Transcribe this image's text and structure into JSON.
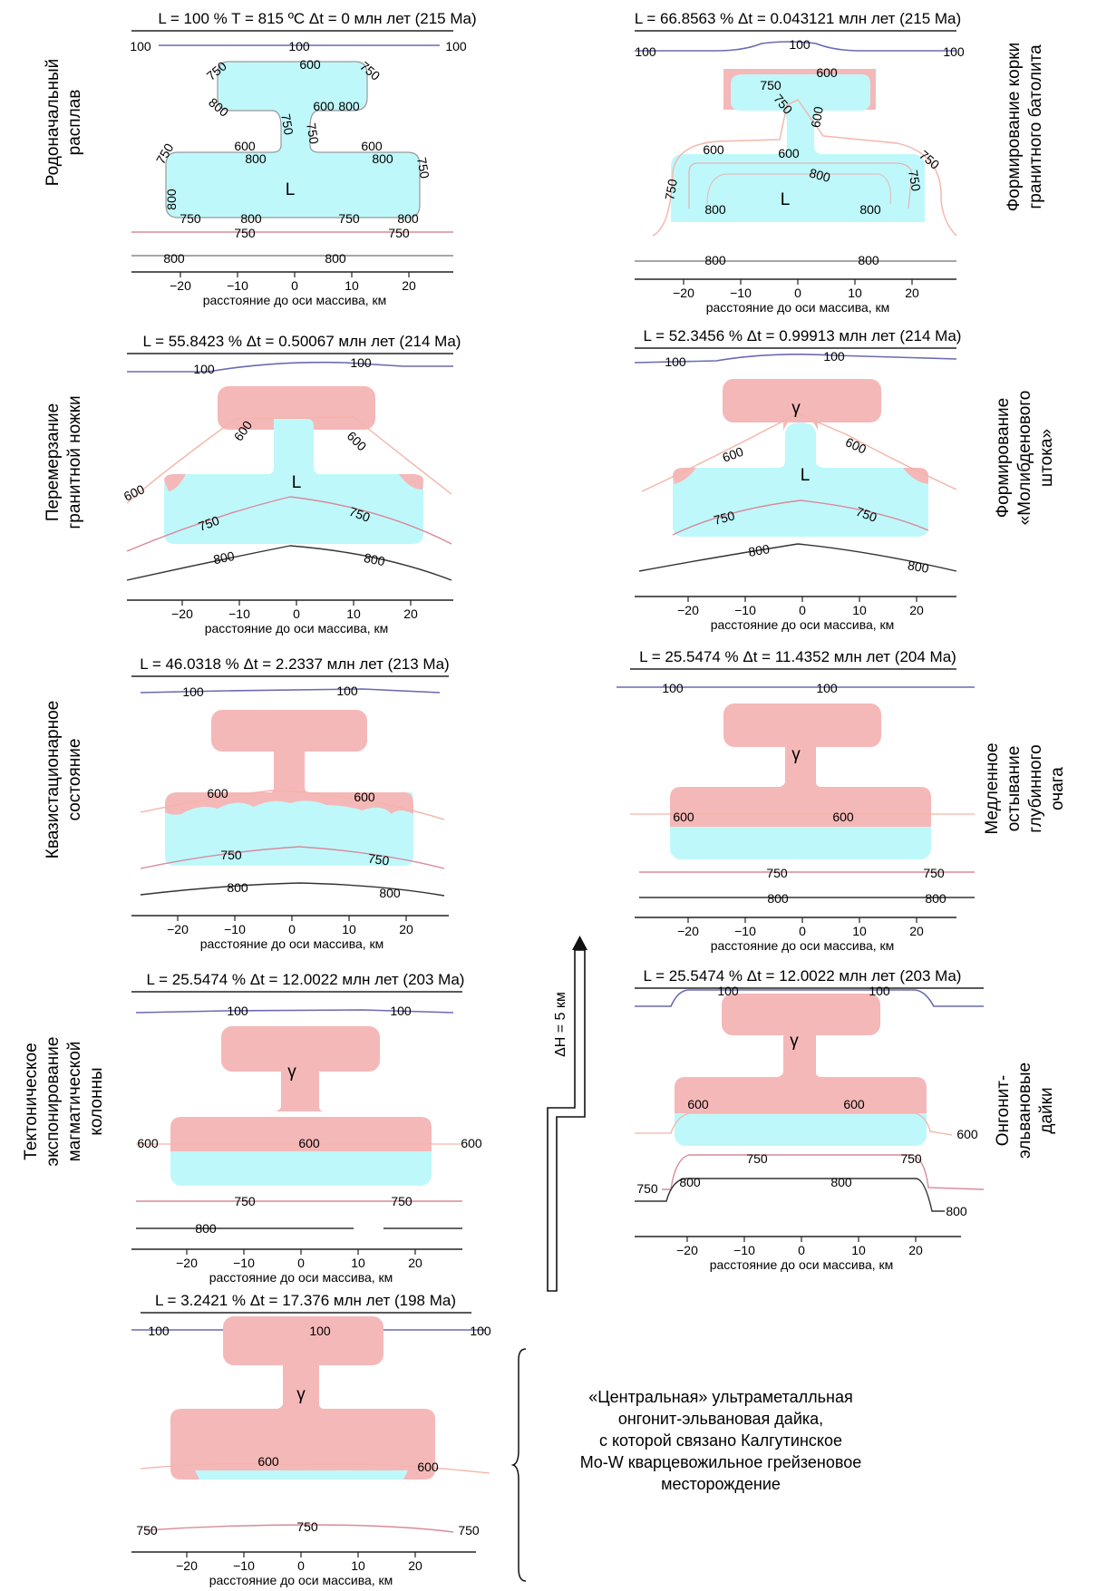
{
  "axis_label": "расстояние до оси массива, км",
  "tick_labels": [
    "−20",
    "−10",
    "0",
    "10",
    "20"
  ],
  "colors": {
    "melt": "#bff8fb",
    "granite": "#f5b8b8",
    "iso100": "#6a6ab4",
    "iso600": "#f3b4a8",
    "iso750": "#d88a9a",
    "iso800": "#333333"
  },
  "panels": [
    {
      "header": "L = 100 %  T = 815 ºC  Δt = 0 млн лет (215 Ma)",
      "side": [
        "Родоначальный",
        "расплав"
      ],
      "labels": [
        "100",
        "100",
        "100",
        "600",
        "750",
        "750",
        "800",
        "600",
        "800",
        "750",
        "750",
        "600",
        "800",
        "600",
        "800",
        "750",
        "750",
        "800",
        "750",
        "800",
        "750",
        "800",
        "750",
        "750",
        "800",
        "800",
        "L"
      ]
    },
    {
      "header": "L = 66.8563 % Δt = 0.043121 млн лет (215 Ma)",
      "side": [
        "Формирование корки",
        "гранитного батолита"
      ],
      "labels": [
        "100",
        "100",
        "100",
        "600",
        "750",
        "750",
        "600",
        "600",
        "750",
        "600",
        "750",
        "800",
        "750",
        "800",
        "800",
        "L",
        "800",
        "800"
      ]
    },
    {
      "header": "L = 55.8423 % Δt = 0.50067 млн лет (214 Ma)",
      "side": [
        "Перемерзание",
        "гранитной ножки"
      ],
      "labels": [
        "100",
        "100",
        "600",
        "600",
        "600",
        "L",
        "750",
        "750",
        "800",
        "800"
      ]
    },
    {
      "header": "L = 52.3456 % Δt = 0.99913 млн лет (214 Ma)",
      "side": [
        "Формирование",
        "«Молибденового",
        "штока»"
      ],
      "labels": [
        "100",
        "100",
        "γ",
        "600",
        "600",
        "L",
        "750",
        "750",
        "800",
        "800"
      ]
    },
    {
      "header": "L = 46.0318 % Δt = 2.2337 млн лет (213 Ma)",
      "side": [
        "Квазистационарное",
        "состояние"
      ],
      "labels": [
        "100",
        "100",
        "600",
        "600",
        "750",
        "750",
        "800",
        "800"
      ]
    },
    {
      "header": "L = 25.5474 % Δt = 11.4352 млн лет (204 Ma)",
      "side": [
        "Медленное",
        "остывание",
        "глубинного",
        "очага"
      ],
      "labels": [
        "100",
        "100",
        "γ",
        "600",
        "600",
        "750",
        "750",
        "800",
        "800"
      ]
    },
    {
      "header": "L = 25.5474 % Δt = 12.0022 млн лет (203 Ma)",
      "side": [
        "Тектоническое",
        "экспонирование",
        "магматической",
        "колонны"
      ],
      "labels": [
        "100",
        "100",
        "γ",
        "600",
        "600",
        "600",
        "750",
        "750",
        "800"
      ]
    },
    {
      "header": "L = 25.5474 % Δt = 12.0022 млн лет (203 Ma)",
      "side": [
        "Онгонит-",
        "эльвановые",
        "дайки"
      ],
      "labels": [
        "100",
        "100",
        "γ",
        "600",
        "600",
        "600",
        "750",
        "750",
        "750",
        "800",
        "800",
        "800"
      ]
    },
    {
      "header": "L = 3.2421 %  Δt = 17.376 млн лет (198 Ma)",
      "side": [],
      "labels": [
        "100",
        "100",
        "100",
        "γ",
        "600",
        "600",
        "750",
        "750",
        "750"
      ]
    }
  ],
  "uplift_label": "ΔH = 5 км",
  "note": [
    "«Центральная» ультраметалльная",
    "онгонит-эльвановая дайка,",
    "с которой связано Калгутинское",
    "Mo-W кварцевожильное грейзеновое",
    "месторождение"
  ]
}
